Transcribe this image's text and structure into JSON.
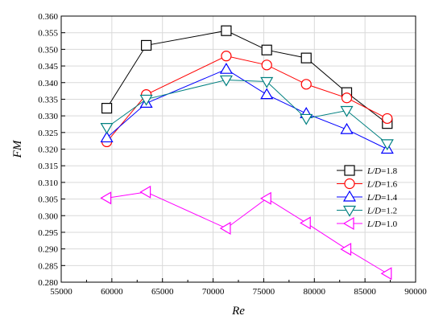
{
  "chart_data": {
    "type": "line",
    "xlabel": "Re",
    "ylabel": "FM",
    "xlim": [
      55000,
      90000
    ],
    "ylim": [
      0.28,
      0.36
    ],
    "x_ticks": [
      "55000",
      "60000",
      "65000",
      "70000",
      "75000",
      "80000",
      "85000",
      "90000"
    ],
    "y_ticks": [
      "0.280",
      "0.285",
      "0.290",
      "0.295",
      "0.300",
      "0.305",
      "0.310",
      "0.315",
      "0.320",
      "0.325",
      "0.330",
      "0.335",
      "0.340",
      "0.345",
      "0.350",
      "0.355",
      "0.360"
    ],
    "grid": true,
    "legend_position": "right",
    "series": [
      {
        "label_prefix": "L/D",
        "label_suffix": "=1.8",
        "color": "#000000",
        "marker": "square",
        "x": [
          59500,
          63400,
          71300,
          75300,
          79200,
          83200,
          87200
        ],
        "y": [
          0.3323,
          0.3512,
          0.3556,
          0.3498,
          0.3474,
          0.337,
          0.3277
        ]
      },
      {
        "label_prefix": "L/D",
        "label_suffix": "=1.6",
        "color": "#ff0000",
        "marker": "circle",
        "x": [
          59500,
          63400,
          71300,
          75300,
          79200,
          83200,
          87200
        ],
        "y": [
          0.3222,
          0.3364,
          0.348,
          0.3453,
          0.3395,
          0.3354,
          0.3292
        ]
      },
      {
        "label_prefix": "L/D",
        "label_suffix": "=1.4",
        "color": "#0000ff",
        "marker": "triangle-up",
        "x": [
          59500,
          63400,
          71300,
          75300,
          79200,
          83200,
          87200
        ],
        "y": [
          0.3234,
          0.3338,
          0.344,
          0.3364,
          0.3307,
          0.3259,
          0.32
        ]
      },
      {
        "label_prefix": "L/D",
        "label_suffix": "=1.2",
        "color": "#008080",
        "marker": "triangle-down",
        "x": [
          59500,
          63400,
          71300,
          75300,
          79200,
          83200,
          87200
        ],
        "y": [
          0.3265,
          0.335,
          0.3408,
          0.3403,
          0.3292,
          0.3316,
          0.3216
        ]
      },
      {
        "label_prefix": "L/D",
        "label_suffix": "=1.0",
        "color": "#ff00ff",
        "marker": "triangle-left",
        "x": [
          59500,
          63400,
          71300,
          75300,
          79200,
          83200,
          87200
        ],
        "y": [
          0.3053,
          0.3071,
          0.2962,
          0.3052,
          0.2978,
          0.2899,
          0.2826
        ]
      }
    ]
  }
}
